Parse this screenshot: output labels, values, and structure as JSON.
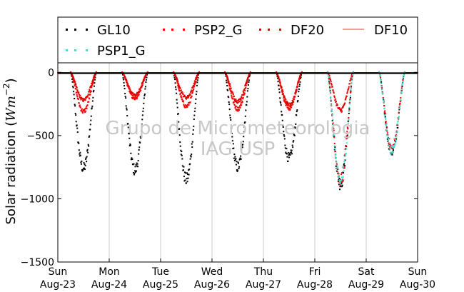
{
  "chart_data": {
    "type": "scatter",
    "ylabel": "Solar radiation (Wm^-2)",
    "ylabel_text": "Solar radiation (",
    "ylabel_unit_base": "Wm",
    "ylabel_unit_exp": "−2",
    "ylabel_close": ")",
    "ylim": [
      -1500,
      75
    ],
    "yticks": [
      {
        "value": 0,
        "label": "0"
      },
      {
        "value": -500,
        "label": "−500"
      },
      {
        "value": -1000,
        "label": "−1000"
      },
      {
        "value": -1500,
        "label": "−1500"
      }
    ],
    "xlim": [
      "2015-08-23",
      "2015-08-30"
    ],
    "xticks": [
      {
        "day": "Sun",
        "date": "Aug-23"
      },
      {
        "day": "Mon",
        "date": "Aug-24"
      },
      {
        "day": "Tue",
        "date": "Aug-25"
      },
      {
        "day": "Wed",
        "date": "Aug-26"
      },
      {
        "day": "Thu",
        "date": "Aug-27"
      },
      {
        "day": "Fri",
        "date": "Aug-28"
      },
      {
        "day": "Sat",
        "date": "Aug-29"
      },
      {
        "day": "Sun",
        "date": "Aug-30"
      }
    ],
    "grid": "vertical",
    "legend_position": "top",
    "watermark": [
      "Grupo de Micrometeorologia",
      "IAG USP"
    ],
    "series": [
      {
        "name": "GL10",
        "style": "dotted",
        "color": "#000000",
        "daily": [
          {
            "day": 0,
            "start": 0.25,
            "peak_hour": 0.5,
            "end": 0.75,
            "peak": -760
          },
          {
            "day": 1,
            "start": 0.25,
            "peak_hour": 0.5,
            "end": 0.75,
            "peak": -775
          },
          {
            "day": 2,
            "start": 0.25,
            "peak_hour": 0.5,
            "end": 0.75,
            "peak": -850
          },
          {
            "day": 3,
            "start": 0.25,
            "peak_hour": 0.5,
            "end": 0.75,
            "peak": -750
          },
          {
            "day": 4,
            "start": 0.25,
            "peak_hour": 0.5,
            "end": 0.75,
            "peak": -680
          },
          {
            "day": 5,
            "start": 0.25,
            "peak_hour": 0.5,
            "end": 0.75,
            "peak": -880
          },
          {
            "day": 6,
            "start": 0.25,
            "peak_hour": 0.5,
            "end": 0.75,
            "peak": -630
          }
        ]
      },
      {
        "name": "PSP2_G",
        "style": "dotted",
        "color": "#ff0000",
        "daily": [
          {
            "day": 0,
            "start": 0.25,
            "peak_hour": 0.5,
            "end": 0.75,
            "peak": -310
          },
          {
            "day": 1,
            "start": 0.25,
            "peak_hour": 0.5,
            "end": 0.75,
            "peak": -210
          },
          {
            "day": 2,
            "start": 0.25,
            "peak_hour": 0.5,
            "end": 0.75,
            "peak": -270
          },
          {
            "day": 3,
            "start": 0.25,
            "peak_hour": 0.5,
            "end": 0.75,
            "peak": -290
          },
          {
            "day": 4,
            "start": 0.25,
            "peak_hour": 0.5,
            "end": 0.75,
            "peak": -285
          },
          {
            "day": 5,
            "start": 0.25,
            "peak_hour": 0.5,
            "end": 0.75,
            "peak": -850
          },
          {
            "day": 6,
            "start": 0.25,
            "peak_hour": 0.5,
            "end": 0.75,
            "peak": -600
          }
        ]
      },
      {
        "name": "DF20",
        "style": "dotted",
        "color": "#e00000",
        "daily": [
          {
            "day": 0,
            "start": 0.25,
            "peak_hour": 0.5,
            "end": 0.75,
            "peak": -220
          },
          {
            "day": 1,
            "start": 0.25,
            "peak_hour": 0.5,
            "end": 0.75,
            "peak": -180
          },
          {
            "day": 2,
            "start": 0.25,
            "peak_hour": 0.5,
            "end": 0.75,
            "peak": -200
          },
          {
            "day": 3,
            "start": 0.25,
            "peak_hour": 0.5,
            "end": 0.75,
            "peak": -230
          },
          {
            "day": 4,
            "start": 0.25,
            "peak_hour": 0.5,
            "end": 0.75,
            "peak": -260
          },
          {
            "day": 5,
            "start": 0.25,
            "peak_hour": 0.5,
            "end": 0.75,
            "peak": -300
          }
        ]
      },
      {
        "name": "DF10",
        "style": "line",
        "color": "#ff6060",
        "daily": []
      },
      {
        "name": "PSP1_G",
        "style": "dotted",
        "color": "#40e0d0",
        "daily": [
          {
            "day": 5,
            "start": 0.25,
            "peak_hour": 0.5,
            "end": 0.75,
            "peak": -870
          },
          {
            "day": 6,
            "start": 0.25,
            "peak_hour": 0.5,
            "end": 0.75,
            "peak": -620
          }
        ]
      }
    ]
  }
}
